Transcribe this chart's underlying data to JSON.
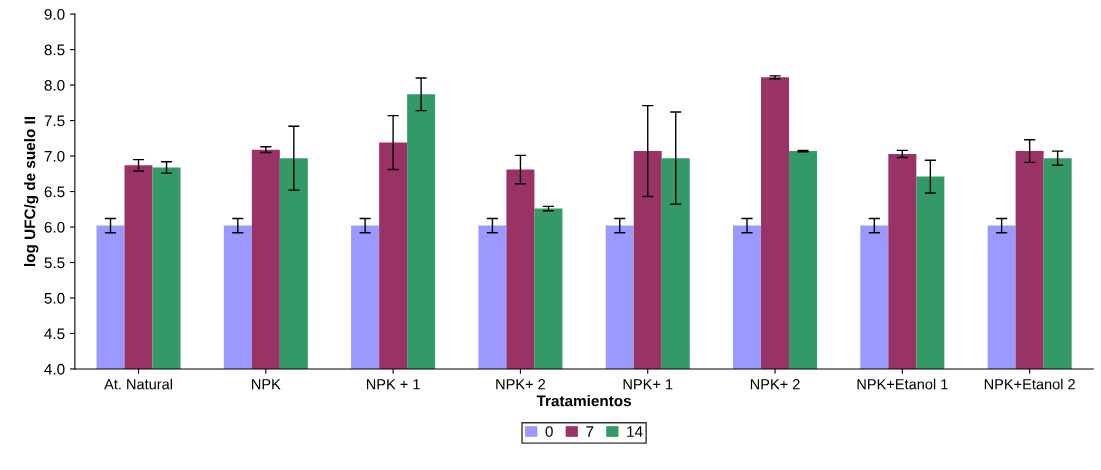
{
  "chart_data": {
    "type": "bar",
    "xlabel": "Tratamientos",
    "ylabel": "log UFC/g de suelo II",
    "categories": [
      "At. Natural",
      "NPK",
      "NPK + 1",
      "NPK+ 2",
      "NPK+ 1",
      "NPK+ 2",
      "NPK+Etanol 1",
      "NPK+Etanol 2"
    ],
    "series": [
      {
        "name": "0",
        "color": "#9999ff",
        "values": [
          6.02,
          6.02,
          6.02,
          6.02,
          6.02,
          6.02,
          6.02,
          6.02
        ],
        "errors": [
          0.1,
          0.1,
          0.1,
          0.1,
          0.1,
          0.1,
          0.1,
          0.1
        ]
      },
      {
        "name": "7",
        "color": "#993366",
        "values": [
          6.87,
          7.09,
          7.19,
          6.81,
          7.07,
          8.11,
          7.03,
          7.07
        ],
        "errors": [
          0.08,
          0.04,
          0.38,
          0.2,
          0.64,
          0.02,
          0.05,
          0.16
        ]
      },
      {
        "name": "14",
        "color": "#339966",
        "values": [
          6.84,
          6.97,
          7.87,
          6.26,
          6.97,
          7.07,
          6.71,
          6.97
        ],
        "errors": [
          0.08,
          0.45,
          0.23,
          0.03,
          0.65,
          0.01,
          0.23,
          0.1
        ]
      }
    ],
    "ylim": [
      4.0,
      9.0
    ],
    "yticks": [
      {
        "value": 4.0,
        "label": "4.0"
      },
      {
        "value": 4.5,
        "label": "4.5"
      },
      {
        "value": 5.0,
        "label": "5.0"
      },
      {
        "value": 5.5,
        "label": "5.5"
      },
      {
        "value": 6.0,
        "label": "6.0"
      },
      {
        "value": 6.5,
        "label": "6.5"
      },
      {
        "value": 7.0,
        "label": "7.0"
      },
      {
        "value": 7.5,
        "label": "7.5"
      },
      {
        "value": 8.0,
        "label": "8.0"
      },
      {
        "value": 8.5,
        "label": "8.5"
      },
      {
        "value": 9.0,
        "label": "9.0"
      }
    ],
    "grid": false,
    "legend": "bottom"
  }
}
